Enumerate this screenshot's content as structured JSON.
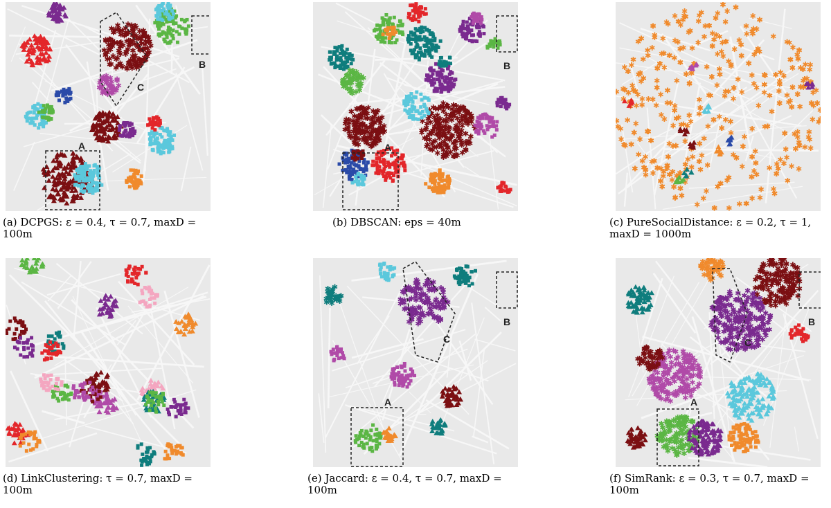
{
  "panels": [
    {
      "id": "a",
      "caption": "(a) DCPGS: ε = 0.4, τ = 0.7, maxD = 100m",
      "labels": [
        "A",
        "B",
        "C"
      ],
      "main_color": "#7b0f12"
    },
    {
      "id": "b",
      "caption": "(b) DBSCAN: eps = 40m",
      "labels": [
        "A",
        "B"
      ],
      "main_color": "#7b0f12"
    },
    {
      "id": "c",
      "caption": "(c) PureSocialDistance: ε = 0.2, τ = 1, maxD = 1000m",
      "labels": [],
      "main_color": "#f08a2c"
    },
    {
      "id": "d",
      "caption": "(d) LinkClustering: τ = 0.7, maxD = 100m",
      "labels": [],
      "main_color": "#a0459a"
    },
    {
      "id": "e",
      "caption": "(e) Jaccard: ε = 0.4, τ = 0.7, maxD = 100m",
      "labels": [
        "A",
        "B",
        "C"
      ],
      "main_color": "#7a2a8f"
    },
    {
      "id": "f",
      "caption": "(f) SimRank: ε = 0.3, τ = 0.7, maxD = 100m",
      "labels": [
        "A",
        "B",
        "C"
      ],
      "main_color": "#7a2a8f"
    }
  ],
  "palette": {
    "maroon": "#7b0f12",
    "purple": "#7a2a8f",
    "orange": "#f08a2c",
    "cyan": "#5bc8dc",
    "teal": "#0f7d7d",
    "green": "#5bb644",
    "red": "#e3262a",
    "magenta": "#b04aa8",
    "blue": "#2a4aa8",
    "yellow": "#f4ee1c",
    "pink": "#f4a6c0",
    "map": "#e9e9e9"
  }
}
